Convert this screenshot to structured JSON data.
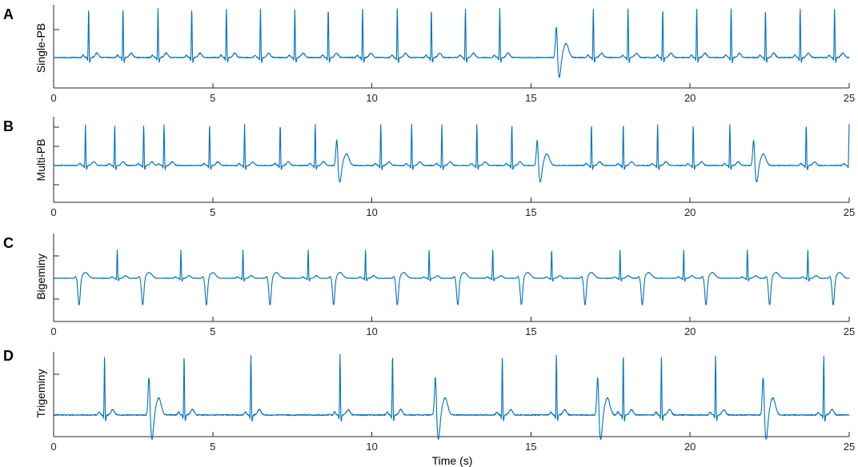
{
  "style": {
    "trace_color": "#0072BD",
    "axis_color": "#262626"
  },
  "chart_data": [
    {
      "type": "line",
      "panel": "A",
      "ylabel": "Single-PB",
      "xlim": [
        0,
        25
      ],
      "xticks": [
        0,
        5,
        10,
        15,
        20,
        25
      ],
      "normal_beats_s": [
        1.1,
        2.18,
        3.28,
        4.34,
        5.43,
        6.5,
        7.58,
        8.63,
        9.71,
        10.8,
        11.87,
        12.94,
        14.02,
        16.96,
        18.05,
        19.14,
        20.21,
        21.29,
        22.37,
        23.46,
        24.54
      ],
      "premature_beats_s": [
        15.8
      ],
      "beat_morphology": [
        "normal",
        "wide"
      ]
    },
    {
      "type": "line",
      "panel": "B",
      "ylabel": "Multi-PB",
      "xlim": [
        0,
        25
      ],
      "xticks": [
        0,
        5,
        10,
        15,
        20,
        25
      ],
      "normal_beats_s": [
        1.0,
        1.92,
        2.83,
        3.47,
        4.9,
        6.0,
        7.12,
        8.22,
        10.28,
        11.25,
        12.2,
        13.3,
        14.4,
        16.9,
        17.9,
        18.98,
        20.1,
        21.25,
        23.65,
        25.0
      ],
      "premature_beats_s": [
        8.9,
        15.2,
        22.0
      ],
      "beat_morphology": [
        "normal",
        "wide",
        "small"
      ]
    },
    {
      "type": "line",
      "panel": "C",
      "ylabel": "Bigeminy",
      "xlim": [
        0,
        25
      ],
      "xticks": [
        0,
        5,
        10,
        15,
        20,
        25
      ],
      "normal_beats_s": [
        2.0,
        4.0,
        5.95,
        8.0,
        9.8,
        11.8,
        13.8,
        15.65,
        17.8,
        19.8,
        21.8,
        23.7
      ],
      "premature_beats_s": [
        0.8,
        2.8,
        4.8,
        6.8,
        8.8,
        10.8,
        12.7,
        14.7,
        16.7,
        18.5,
        20.5,
        22.5,
        24.5
      ],
      "beat_morphology": [
        "normal",
        "inverted"
      ]
    },
    {
      "type": "line",
      "panel": "D",
      "ylabel": "Trigeminy",
      "xlabel": "Time (s)",
      "xlim": [
        0,
        25
      ],
      "xticks": [
        0,
        5,
        10,
        15,
        20,
        25
      ],
      "normal_beats_s": [
        1.6,
        4.1,
        6.2,
        9.0,
        10.65,
        14.1,
        15.8,
        17.9,
        19.1,
        20.8,
        24.2
      ],
      "premature_beats_s": [
        3.0,
        12.0,
        17.1,
        22.3
      ],
      "beat_morphology": [
        "normal",
        "wide"
      ]
    }
  ]
}
